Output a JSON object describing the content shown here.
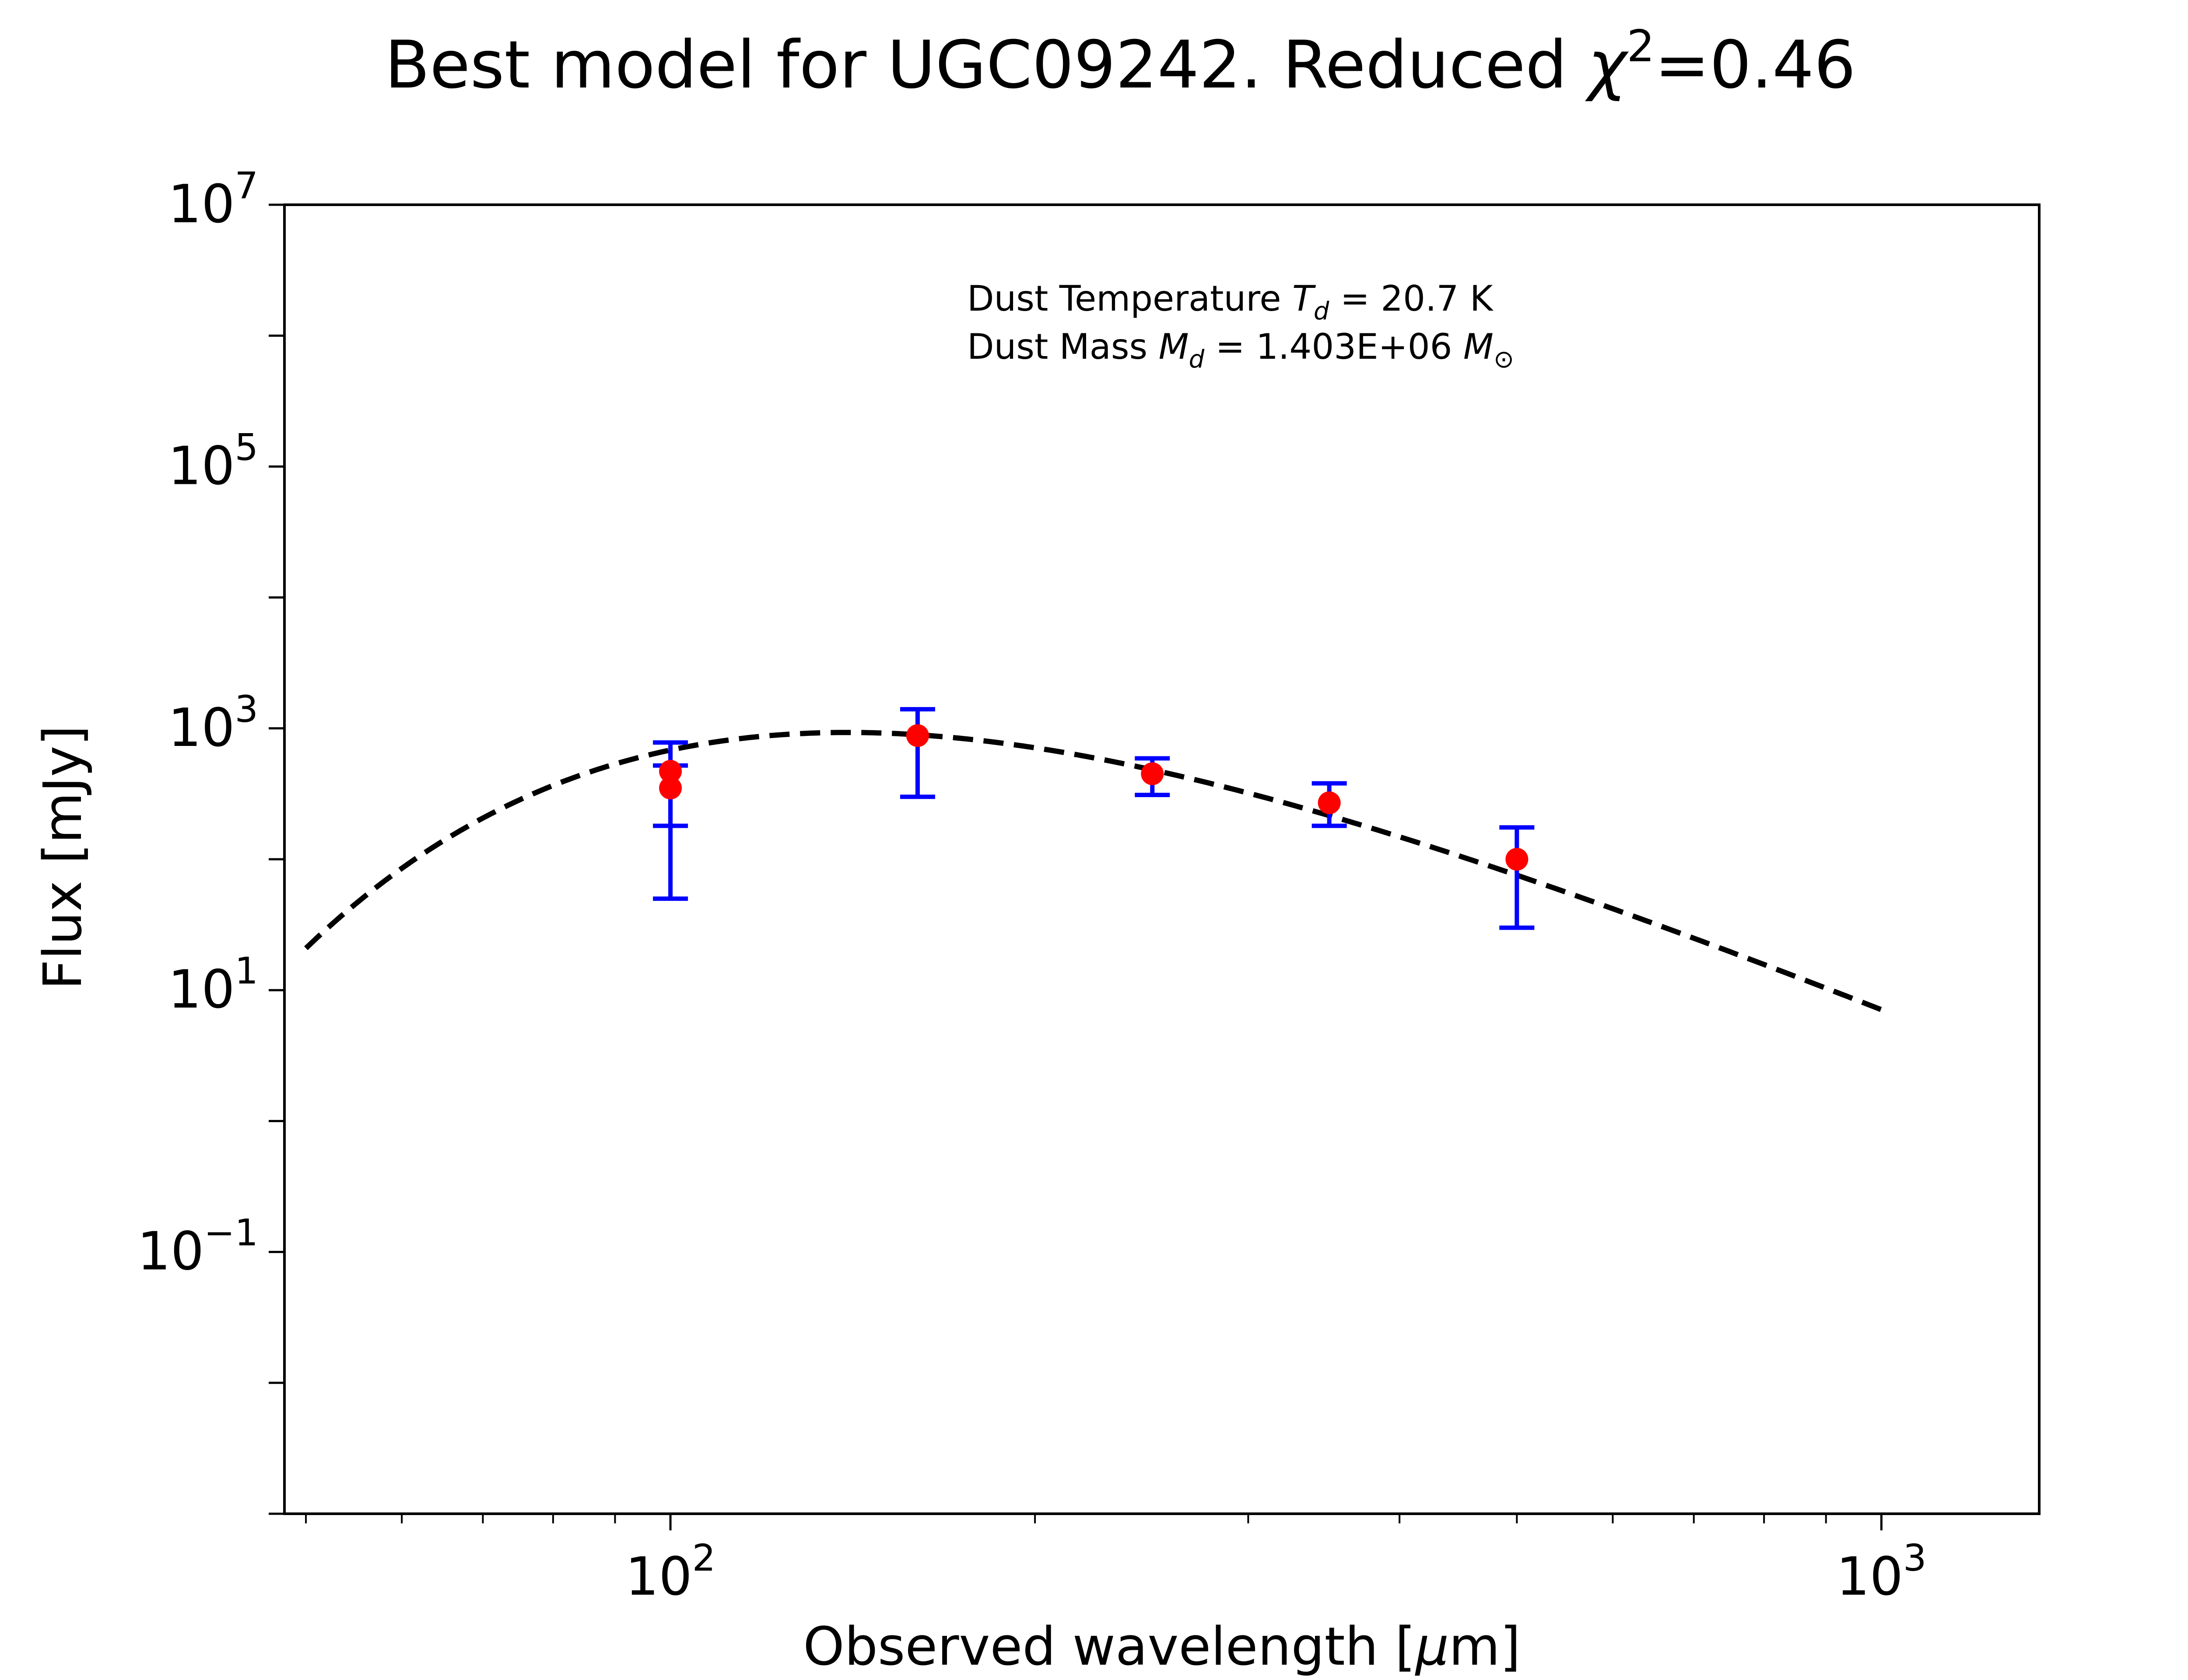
{
  "chart_data": {
    "type": "scatter",
    "title": {
      "prefix": "Best model for UGC09242. Reduced ",
      "symbol": "χ",
      "superscript": "2",
      "suffix": "=0.46"
    },
    "xlabel": {
      "prefix": "Observed wavelength [",
      "symbol": "μ",
      "suffix": "m]"
    },
    "ylabel": "Flux [mJy]",
    "xscale": "log",
    "yscale": "log",
    "xlim": [
      48,
      1350
    ],
    "ylim": [
      0.001,
      10000000
    ],
    "grid": false,
    "x_ticks": [
      {
        "base": "10",
        "exp": "2",
        "value": 100
      },
      {
        "base": "10",
        "exp": "3",
        "value": 1000
      }
    ],
    "y_ticks": [
      {
        "base": "10",
        "exp": "7",
        "value": 10000000
      },
      {
        "base": "10",
        "exp": "5",
        "value": 100000
      },
      {
        "base": "10",
        "exp": "3",
        "value": 1000
      },
      {
        "base": "10",
        "exp": "1",
        "value": 10
      },
      {
        "base": "10",
        "exp": "−1",
        "value": 0.1
      }
    ],
    "annotations": [
      {
        "prefix": "Dust Temperature ",
        "sym": "T",
        "sub": "d",
        "suffix": " = 20.7 K"
      },
      {
        "prefix": "Dust Mass ",
        "sym": "M",
        "sub": "d",
        "suffix": " = 1.403E+06 ",
        "sym2": "M",
        "sub2": "⊙"
      }
    ],
    "model": {
      "style": "dashed",
      "color": "#000000",
      "temperature_K": 20.7,
      "x_range": [
        50,
        1000
      ]
    },
    "observations": {
      "marker_color": "#ff0000",
      "errorbar_color": "#0000ff",
      "points": [
        {
          "x": 100,
          "y": 470,
          "yerr_low": 180,
          "yerr_high": 780
        },
        {
          "x": 100,
          "y": 350,
          "yerr_low": 50,
          "yerr_high": 520
        },
        {
          "x": 160,
          "y": 880,
          "yerr_low": 300,
          "yerr_high": 1400
        },
        {
          "x": 250,
          "y": 450,
          "yerr_low": 310,
          "yerr_high": 590
        },
        {
          "x": 350,
          "y": 270,
          "yerr_low": 180,
          "yerr_high": 380
        },
        {
          "x": 500,
          "y": 100,
          "yerr_low": 30,
          "yerr_high": 175
        }
      ]
    }
  }
}
